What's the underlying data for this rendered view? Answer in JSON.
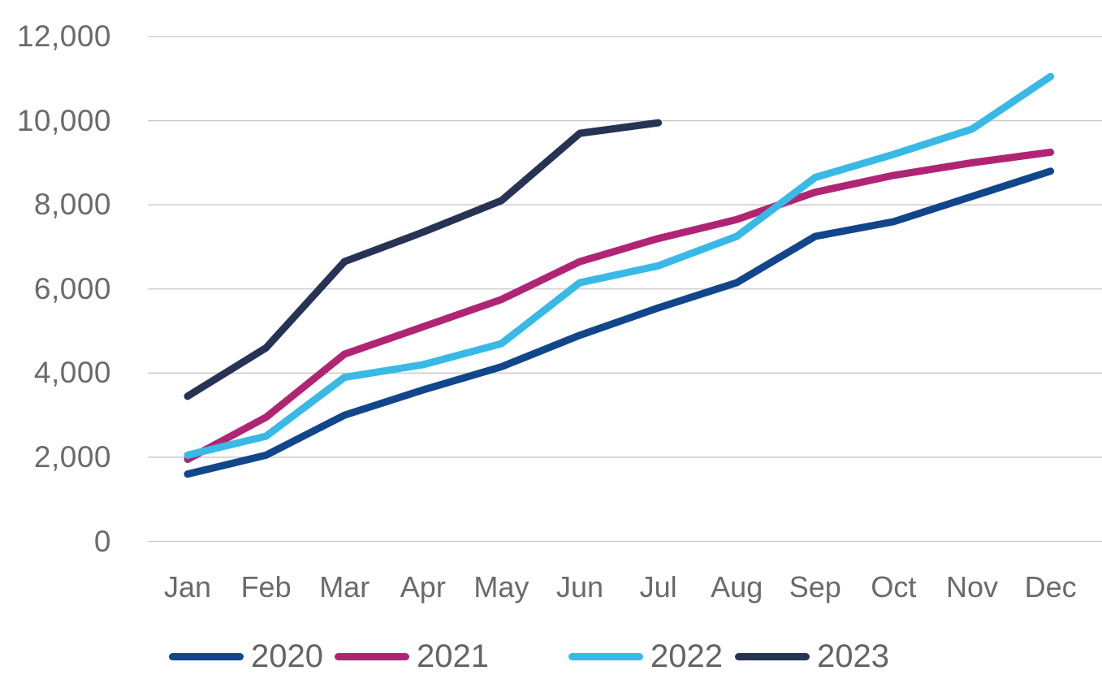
{
  "chart_data": {
    "type": "line",
    "title": "",
    "xlabel": "",
    "ylabel": "",
    "categories": [
      "Jan",
      "Feb",
      "Mar",
      "Apr",
      "May",
      "Jun",
      "Jul",
      "Aug",
      "Sep",
      "Oct",
      "Nov",
      "Dec"
    ],
    "y_ticks": [
      {
        "label": "0",
        "value": 0
      },
      {
        "label": "2,000",
        "value": 2000
      },
      {
        "label": "4,000",
        "value": 4000
      },
      {
        "label": "6,000",
        "value": 6000
      },
      {
        "label": "8,000",
        "value": 8000
      },
      {
        "label": "10,000",
        "value": 10000
      },
      {
        "label": "12,000",
        "value": 12000
      }
    ],
    "ylim": [
      0,
      12000
    ],
    "grid": "horizontal",
    "legend_position": "bottom",
    "series": [
      {
        "name": "2020",
        "color": "#11468a",
        "values": [
          1600,
          2050,
          3000,
          3600,
          4150,
          4900,
          5550,
          6150,
          7250,
          7600,
          8200,
          8800
        ]
      },
      {
        "name": "2021",
        "color": "#b02573",
        "values": [
          1950,
          2950,
          4450,
          5100,
          5750,
          6650,
          7200,
          7650,
          8300,
          8700,
          9000,
          9250
        ]
      },
      {
        "name": "2022",
        "color": "#38b9e6",
        "values": [
          2050,
          2500,
          3900,
          4200,
          4700,
          6150,
          6550,
          7250,
          8650,
          9200,
          9800,
          11050
        ]
      },
      {
        "name": "2023",
        "color": "#273355",
        "values": [
          3450,
          4600,
          6650,
          7350,
          8100,
          9700,
          9950,
          null,
          null,
          null,
          null,
          null
        ]
      }
    ],
    "colors": {
      "gridline": "#c8c8c8",
      "axis_text": "#6a6a6a",
      "legend_text": "#646464"
    }
  }
}
